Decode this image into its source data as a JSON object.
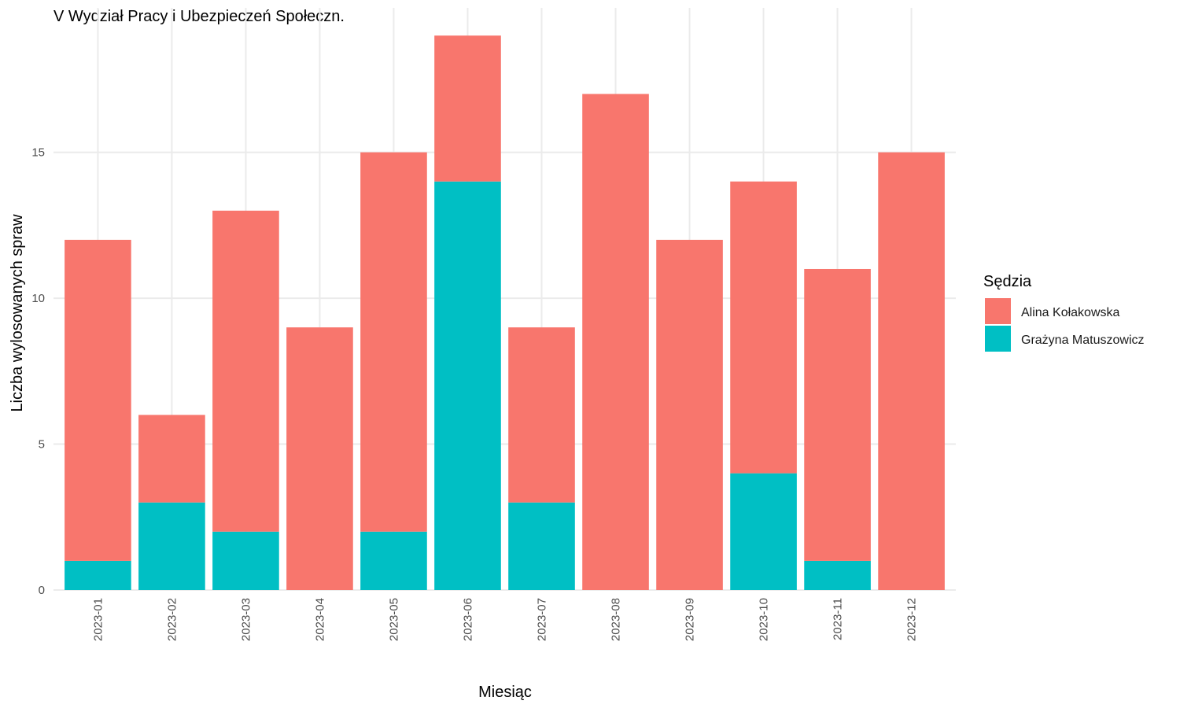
{
  "chart_data": {
    "type": "bar",
    "stacked": true,
    "title": "V Wydział Pracy i Ubezpieczeń Społeczn.",
    "xlabel": "Miesiąc",
    "ylabel": "Liczba wylosowanych spraw",
    "categories": [
      "2023-01",
      "2023-02",
      "2023-03",
      "2023-04",
      "2023-05",
      "2023-06",
      "2023-07",
      "2023-08",
      "2023-09",
      "2023-10",
      "2023-11",
      "2023-12"
    ],
    "series": [
      {
        "name": "Grażyna Matuszowicz",
        "color": "#00BFC4",
        "values": [
          1,
          3,
          2,
          0,
          2,
          14,
          3,
          0,
          0,
          4,
          1,
          0
        ]
      },
      {
        "name": "Alina Kołakowska",
        "color": "#F8766D",
        "values": [
          11,
          3,
          11,
          9,
          13,
          5,
          6,
          17,
          12,
          10,
          10,
          15
        ]
      }
    ],
    "ylim": [
      0,
      19.95
    ],
    "yticks": [
      0,
      5,
      10,
      15
    ],
    "grid": true,
    "legend": {
      "title": "Sędzia",
      "position": "right",
      "entries": [
        {
          "label": "Alina Kołakowska",
          "color": "#F8766D"
        },
        {
          "label": "Grażyna Matuszowicz",
          "color": "#00BFC4"
        }
      ]
    }
  }
}
